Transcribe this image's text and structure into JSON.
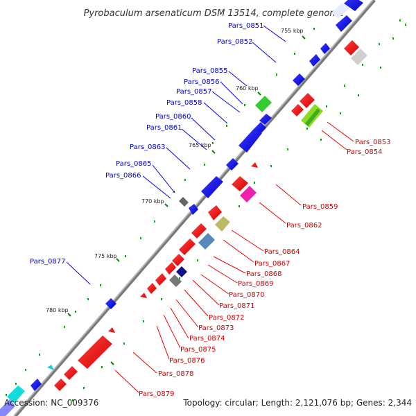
{
  "title": "Pyrobaculum arsenaticum DSM 13514, complete genome",
  "footer": {
    "accession": "Accession: NC_009376",
    "summary": "Topology: circular; Length: 2,121,076 bp; Genes: 2,344"
  },
  "ticks": [
    "755 kbp",
    "760 kbp",
    "765 kbp",
    "770 kbp",
    "775 kbp",
    "780 kbp"
  ],
  "colors": {
    "forward": "#0000ee",
    "reverse": "#ee0000",
    "backbone": "#888888",
    "tick": "#008800"
  },
  "forward_labels": [
    "Pars_0851",
    "Pars_0852",
    "Pars_0855",
    "Pars_0856",
    "Pars_0857",
    "Pars_0858",
    "Pars_0860",
    "Pars_0861",
    "Pars_0863",
    "Pars_0865",
    "Pars_0866",
    "Pars_0877"
  ],
  "reverse_labels": [
    "Pars_0853",
    "Pars_0854",
    "Pars_0859",
    "Pars_0862",
    "Pars_0864",
    "Pars_0867",
    "Pars_0868",
    "Pars_0869",
    "Pars_0870",
    "Pars_0871",
    "Pars_0872",
    "Pars_0873",
    "Pars_0874",
    "Pars_0875",
    "Pars_0876",
    "Pars_0878",
    "Pars_0879"
  ]
}
